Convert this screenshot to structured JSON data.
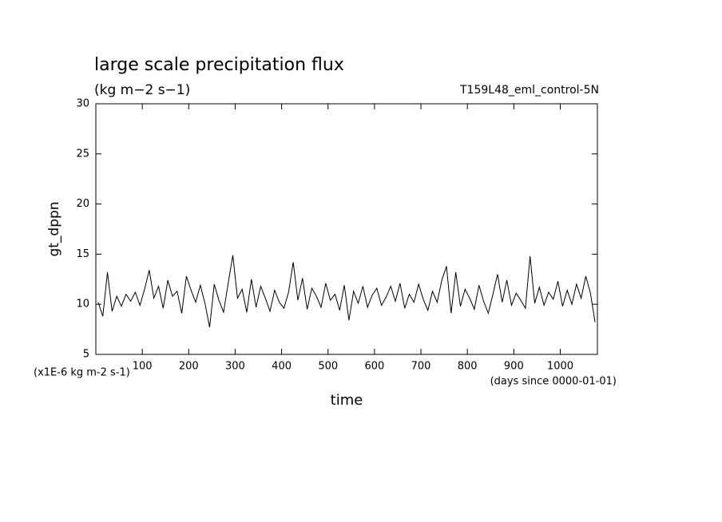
{
  "chart_data": {
    "type": "line",
    "title": "large scale precipitation flux",
    "subtitle": "(kg m−2 s−1)",
    "annotation": "T159L48_eml_control-5N",
    "y_label": "gt_dppn",
    "x_label": "time",
    "y_unit": "(x1E-6 kg m-2 s-1)",
    "x_unit": "(days since 0000-01-01)",
    "xlim": [
      0,
      1080
    ],
    "ylim": [
      5,
      30
    ],
    "xticks": [
      100,
      200,
      300,
      400,
      500,
      600,
      700,
      800,
      900,
      1000
    ],
    "yticks": [
      5,
      10,
      15,
      20,
      25,
      30
    ],
    "x": [
      5,
      15,
      25,
      35,
      45,
      55,
      65,
      75,
      85,
      95,
      105,
      115,
      125,
      135,
      145,
      155,
      165,
      175,
      185,
      195,
      205,
      215,
      225,
      235,
      245,
      255,
      265,
      275,
      285,
      295,
      305,
      315,
      325,
      335,
      345,
      355,
      365,
      375,
      385,
      395,
      405,
      415,
      425,
      435,
      445,
      455,
      465,
      475,
      485,
      495,
      505,
      515,
      525,
      535,
      545,
      555,
      565,
      575,
      585,
      595,
      605,
      615,
      625,
      635,
      645,
      655,
      665,
      675,
      685,
      695,
      705,
      715,
      725,
      735,
      745,
      755,
      765,
      775,
      785,
      795,
      805,
      815,
      825,
      835,
      845,
      855,
      865,
      875,
      885,
      895,
      905,
      915,
      925,
      935,
      945,
      955,
      965,
      975,
      985,
      995,
      1005,
      1015,
      1025,
      1035,
      1045,
      1055,
      1065,
      1075
    ],
    "series": [
      {
        "name": "gt_dppn",
        "color": "#000000",
        "values": [
          10.2,
          8.8,
          13.2,
          9.3,
          10.8,
          9.8,
          11,
          10.3,
          11.2,
          9.9,
          11.5,
          13.4,
          10.6,
          11.8,
          9.6,
          12.4,
          10.8,
          11.3,
          9.1,
          12.8,
          11.4,
          10.2,
          11.9,
          10.1,
          7.7,
          12,
          10.4,
          9.2,
          12.1,
          14.9,
          10.6,
          11.5,
          9.2,
          12.5,
          9.7,
          11.8,
          10.6,
          9.3,
          11.4,
          10.2,
          9.6,
          11.2,
          14.2,
          10.4,
          12.6,
          9.5,
          11.6,
          10.8,
          9.7,
          12.1,
          10.4,
          11,
          9.4,
          11.9,
          8.4,
          11.3,
          10.1,
          11.8,
          9.7,
          10.9,
          11.6,
          9.9,
          10.7,
          11.8,
          10.3,
          12.1,
          9.6,
          11,
          10.2,
          12,
          10.5,
          9.4,
          11.3,
          10.2,
          12.4,
          13.8,
          9.1,
          13.2,
          9.8,
          11.5,
          10.6,
          9.5,
          11.9,
          10.3,
          9.1,
          11,
          13,
          10.2,
          12.4,
          9.9,
          11.1,
          10.4,
          9.6,
          14.8,
          10.1,
          11.7,
          9.9,
          11.2,
          10.5,
          12.3,
          9.8,
          11.4,
          10,
          12,
          10.6,
          12.8,
          11.1,
          8.2
        ]
      }
    ]
  }
}
